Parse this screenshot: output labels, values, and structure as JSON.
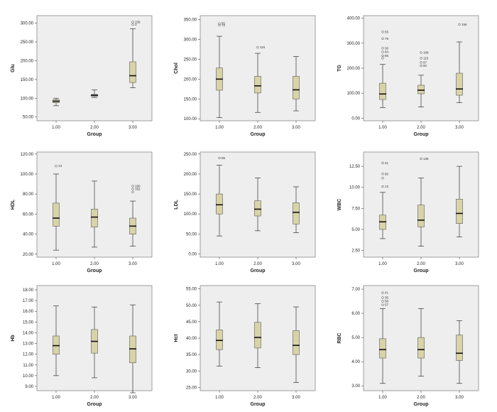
{
  "chart_data": [
    {
      "type": "box",
      "id": "glu",
      "ylabel": "Glu",
      "xlabel": "Group",
      "ylim": [
        40,
        320
      ],
      "yticks": [
        50,
        100,
        150,
        200,
        250,
        300
      ],
      "ytick_labels": [
        "50.00",
        "100.00",
        "150.00",
        "200.00",
        "250.00",
        "300.00"
      ],
      "categories": [
        "1.00",
        "2.00",
        "3.00"
      ],
      "boxes": [
        {
          "q1": 88,
          "median": 92,
          "q3": 96,
          "whisker_low": 80,
          "whisker_high": 100,
          "outliers": []
        },
        {
          "q1": 105,
          "median": 108,
          "q3": 110,
          "whisker_low": 102,
          "whisker_high": 122,
          "outliers": []
        },
        {
          "q1": 142,
          "median": 160,
          "q3": 197,
          "whisker_low": 128,
          "whisker_high": 285,
          "outliers": [
            {
              "y": 303,
              "label": "156"
            },
            {
              "y": 296,
              "label": "3"
            }
          ]
        }
      ]
    },
    {
      "type": "box",
      "id": "chol",
      "ylabel": "Chol",
      "xlabel": "Group",
      "ylim": [
        95,
        360
      ],
      "yticks": [
        100,
        150,
        200,
        250,
        300,
        350
      ],
      "ytick_labels": [
        "100.00",
        "150.00",
        "200.00",
        "250.00",
        "300.00",
        "350.00"
      ],
      "categories": [
        "1.00",
        "2.00",
        "3.00"
      ],
      "boxes": [
        {
          "q1": 172,
          "median": 200,
          "q3": 228,
          "whisker_low": 103,
          "whisker_high": 308,
          "outliers": [
            {
              "y": 340,
              "label": "85"
            },
            {
              "y": 336,
              "label": "72"
            }
          ]
        },
        {
          "q1": 165,
          "median": 183,
          "q3": 207,
          "whisker_low": 116,
          "whisker_high": 265,
          "outliers": [
            {
              "y": 280,
              "label": "116"
            }
          ]
        },
        {
          "q1": 150,
          "median": 173,
          "q3": 207,
          "whisker_low": 120,
          "whisker_high": 257,
          "outliers": []
        }
      ]
    },
    {
      "type": "box",
      "id": "tg",
      "ylabel": "TG",
      "xlabel": "Group",
      "ylim": [
        -10,
        410
      ],
      "yticks": [
        0,
        100,
        200,
        300,
        400
      ],
      "ytick_labels": [
        "0.00",
        "100.00",
        "200.00",
        "300.00",
        "400.00"
      ],
      "categories": [
        "1.00",
        "2.00",
        "3.00"
      ],
      "boxes": [
        {
          "q1": 75,
          "median": 97,
          "q3": 140,
          "whisker_low": 43,
          "whisker_high": 215,
          "outliers": [
            {
              "y": 345,
              "label": "65"
            },
            {
              "y": 318,
              "label": "79"
            },
            {
              "y": 280,
              "label": "36"
            },
            {
              "y": 265,
              "label": "94"
            },
            {
              "y": 250,
              "label": "86"
            },
            {
              "y": 240,
              "label": ""
            }
          ]
        },
        {
          "q1": 98,
          "median": 112,
          "q3": 132,
          "whisker_low": 45,
          "whisker_high": 172,
          "outliers": [
            {
              "y": 262,
              "label": "109"
            },
            {
              "y": 240,
              "label": "115"
            },
            {
              "y": 223,
              "label": "97"
            },
            {
              "y": 210,
              "label": "60"
            }
          ]
        },
        {
          "q1": 92,
          "median": 117,
          "q3": 180,
          "whisker_low": 62,
          "whisker_high": 305,
          "outliers": [
            {
              "y": 375,
              "label": "156"
            }
          ]
        }
      ]
    },
    {
      "type": "box",
      "id": "hdl",
      "ylabel": "HDL",
      "xlabel": "Group",
      "ylim": [
        17,
        122
      ],
      "yticks": [
        20,
        40,
        60,
        80,
        100,
        120
      ],
      "ytick_labels": [
        "20.00",
        "40.00",
        "60.00",
        "80.00",
        "100.00",
        "120.00"
      ],
      "categories": [
        "1.00",
        "2.00",
        "3.00"
      ],
      "boxes": [
        {
          "q1": 48,
          "median": 56,
          "q3": 71,
          "whisker_low": 24,
          "whisker_high": 100,
          "outliers": [
            {
              "y": 108,
              "label": "13"
            }
          ]
        },
        {
          "q1": 47,
          "median": 57,
          "q3": 65,
          "whisker_low": 27,
          "whisker_high": 93,
          "outliers": []
        },
        {
          "q1": 40,
          "median": 48,
          "q3": 56,
          "whisker_low": 28,
          "whisker_high": 73,
          "outliers": [
            {
              "y": 88,
              "label": "180"
            },
            {
              "y": 85,
              "label": "182"
            },
            {
              "y": 82,
              "label": ""
            }
          ]
        }
      ]
    },
    {
      "type": "box",
      "id": "ldl",
      "ylabel": "LDL",
      "xlabel": "Group",
      "ylim": [
        -8,
        255
      ],
      "yticks": [
        0,
        50,
        100,
        150,
        200,
        250
      ],
      "ytick_labels": [
        "0.00",
        "50.00",
        "100.00",
        "150.00",
        "200.00",
        "250.00"
      ],
      "categories": [
        "1.00",
        "2.00",
        "3.00"
      ],
      "boxes": [
        {
          "q1": 100,
          "median": 123,
          "q3": 150,
          "whisker_low": 45,
          "whisker_high": 222,
          "outliers": [
            {
              "y": 240,
              "label": "85"
            }
          ]
        },
        {
          "q1": 95,
          "median": 112,
          "q3": 133,
          "whisker_low": 58,
          "whisker_high": 190,
          "outliers": []
        },
        {
          "q1": 75,
          "median": 104,
          "q3": 128,
          "whisker_low": 53,
          "whisker_high": 168,
          "outliers": []
        }
      ]
    },
    {
      "type": "box",
      "id": "wbc",
      "ylabel": "WBC",
      "xlabel": "Group",
      "ylim": [
        1.7,
        14.2
      ],
      "yticks": [
        2.5,
        5.0,
        7.5,
        10.0,
        12.5
      ],
      "ytick_labels": [
        "2.50",
        "5.00",
        "7.50",
        "10.00",
        "12.50"
      ],
      "categories": [
        "1.00",
        "2.00",
        "3.00"
      ],
      "boxes": [
        {
          "q1": 5.0,
          "median": 5.9,
          "q3": 6.7,
          "whisker_low": 3.9,
          "whisker_high": 9.4,
          "outliers": [
            {
              "y": 12.9,
              "label": "41"
            },
            {
              "y": 11.6,
              "label": "60"
            },
            {
              "y": 11.1,
              "label": ""
            },
            {
              "y": 10.1,
              "label": "13"
            }
          ]
        },
        {
          "q1": 5.3,
          "median": 6.1,
          "q3": 7.9,
          "whisker_low": 3.0,
          "whisker_high": 11.1,
          "outliers": [
            {
              "y": 13.4,
              "label": "136"
            }
          ]
        },
        {
          "q1": 5.7,
          "median": 6.9,
          "q3": 8.6,
          "whisker_low": 4.1,
          "whisker_high": 12.5,
          "outliers": []
        }
      ]
    },
    {
      "type": "box",
      "id": "hb",
      "ylabel": "Hb",
      "xlabel": "Group",
      "ylim": [
        8.6,
        18.4
      ],
      "yticks": [
        9,
        10,
        11,
        12,
        13,
        14,
        15,
        16,
        17,
        18
      ],
      "ytick_labels": [
        "9.00",
        "10.00",
        "11.00",
        "12.00",
        "13.00",
        "14.00",
        "15.00",
        "16.00",
        "17.00",
        "18.00"
      ],
      "tick_spacing_note": "",
      "categories": [
        "1.00",
        "2.00",
        "3.00"
      ],
      "boxes": [
        {
          "q1": 12.0,
          "median": 12.8,
          "q3": 13.7,
          "whisker_low": 10.0,
          "whisker_high": 16.5,
          "outliers": []
        },
        {
          "q1": 12.1,
          "median": 13.2,
          "q3": 14.3,
          "whisker_low": 9.8,
          "whisker_high": 16.4,
          "outliers": []
        },
        {
          "q1": 11.2,
          "median": 12.5,
          "q3": 13.7,
          "whisker_low": 8.4,
          "whisker_high": 16.6,
          "outliers": []
        }
      ]
    },
    {
      "type": "box",
      "id": "hct",
      "ylabel": "Hct",
      "xlabel": "Group",
      "ylim": [
        24,
        56
      ],
      "yticks": [
        25,
        30,
        35,
        40,
        45,
        50,
        55
      ],
      "ytick_labels": [
        "25.00",
        "30.00",
        "35.00",
        "40.00",
        "45.00",
        "50.00",
        "55.00"
      ],
      "categories": [
        "1.00",
        "2.00",
        "3.00"
      ],
      "boxes": [
        {
          "q1": 36.5,
          "median": 39.3,
          "q3": 42.5,
          "whisker_low": 31.5,
          "whisker_high": 51.0,
          "outliers": []
        },
        {
          "q1": 37.0,
          "median": 40.2,
          "q3": 44.8,
          "whisker_low": 31.0,
          "whisker_high": 50.5,
          "outliers": []
        },
        {
          "q1": 35.0,
          "median": 37.8,
          "q3": 42.3,
          "whisker_low": 26.5,
          "whisker_high": 49.5,
          "outliers": []
        }
      ]
    },
    {
      "type": "box",
      "id": "rbc",
      "ylabel": "RBC",
      "xlabel": "Group",
      "ylim": [
        2.8,
        7.15
      ],
      "yticks": [
        3,
        4,
        5,
        6,
        7
      ],
      "ytick_labels": [
        "3.00",
        "4.00",
        "5.00",
        "6.00",
        "7.00"
      ],
      "categories": [
        "1.00",
        "2.00",
        "3.00"
      ],
      "boxes": [
        {
          "q1": 4.15,
          "median": 4.5,
          "q3": 4.95,
          "whisker_low": 3.1,
          "whisker_high": 6.2,
          "outliers": [
            {
              "y": 6.85,
              "label": "41"
            },
            {
              "y": 6.65,
              "label": "35"
            },
            {
              "y": 6.5,
              "label": "58"
            },
            {
              "y": 6.35,
              "label": "57"
            }
          ]
        },
        {
          "q1": 4.15,
          "median": 4.5,
          "q3": 5.0,
          "whisker_low": 3.4,
          "whisker_high": 6.2,
          "outliers": []
        },
        {
          "q1": 4.05,
          "median": 4.35,
          "q3": 5.1,
          "whisker_low": 3.1,
          "whisker_high": 5.7,
          "outliers": []
        }
      ]
    }
  ],
  "style": {
    "plot_bg": "#eeeeee",
    "box_fill": "#d9d3a8",
    "box_stroke": "#5a5a5a",
    "median_color": "#111111",
    "frame_color": "#7a7a7a"
  }
}
